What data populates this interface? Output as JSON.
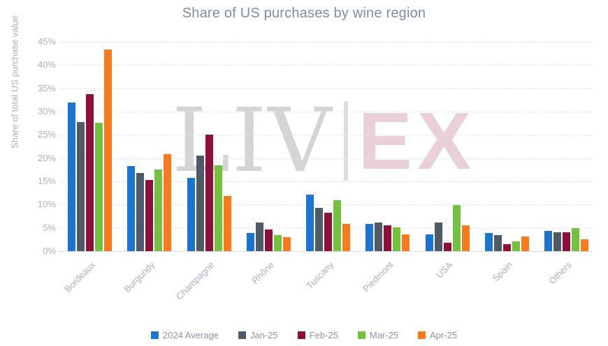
{
  "page": {
    "background": "#ffffff"
  },
  "watermark": {
    "left_text": "LIV",
    "right_text": "EX",
    "liv_color": "#d4d4d4",
    "divider_color": "#dcdcdc",
    "ex_color": "#e9d0d8"
  },
  "chart_data": {
    "type": "bar",
    "title": "Share of US purchases by wine region",
    "ylabel": "Share of total US purchase value",
    "xlabel": "",
    "ylim": [
      0,
      45
    ],
    "ytick_values": [
      45,
      40,
      35,
      30,
      25,
      20,
      15,
      10,
      5,
      0
    ],
    "yticklabels": [
      "45%",
      "40%",
      "35%",
      "30%",
      "25%",
      "20%",
      "15%",
      "10%",
      "5%",
      "0%"
    ],
    "grid": "horizontal-dashed",
    "legend_position": "bottom",
    "categories": [
      "Bordeaux",
      "Burgundy",
      "Champagne",
      "Rhône",
      "Tuscany",
      "Piedmont",
      "USA",
      "Spain",
      "Others"
    ],
    "series": [
      {
        "name": "2024 Average",
        "color": "#1b74d1",
        "values": [
          31.9,
          18.3,
          15.8,
          3.9,
          12.1,
          5.9,
          3.6,
          3.9,
          4.4
        ]
      },
      {
        "name": "Jan-25",
        "color": "#4e5a66",
        "values": [
          27.7,
          16.8,
          20.5,
          6.1,
          9.3,
          6.1,
          6.2,
          3.4,
          4.1
        ]
      },
      {
        "name": "Feb-25",
        "color": "#8e0f3a",
        "values": [
          33.8,
          15.3,
          25.0,
          4.7,
          8.2,
          5.5,
          1.8,
          1.5,
          4.1
        ]
      },
      {
        "name": "Mar-25",
        "color": "#72c13f",
        "values": [
          27.6,
          17.5,
          18.5,
          3.4,
          10.9,
          5.1,
          9.9,
          2.1,
          5.0
        ]
      },
      {
        "name": "Apr-25",
        "color": "#f9791d",
        "values": [
          43.3,
          20.9,
          11.9,
          3.0,
          5.8,
          3.6,
          5.5,
          3.1,
          2.6
        ]
      }
    ]
  }
}
